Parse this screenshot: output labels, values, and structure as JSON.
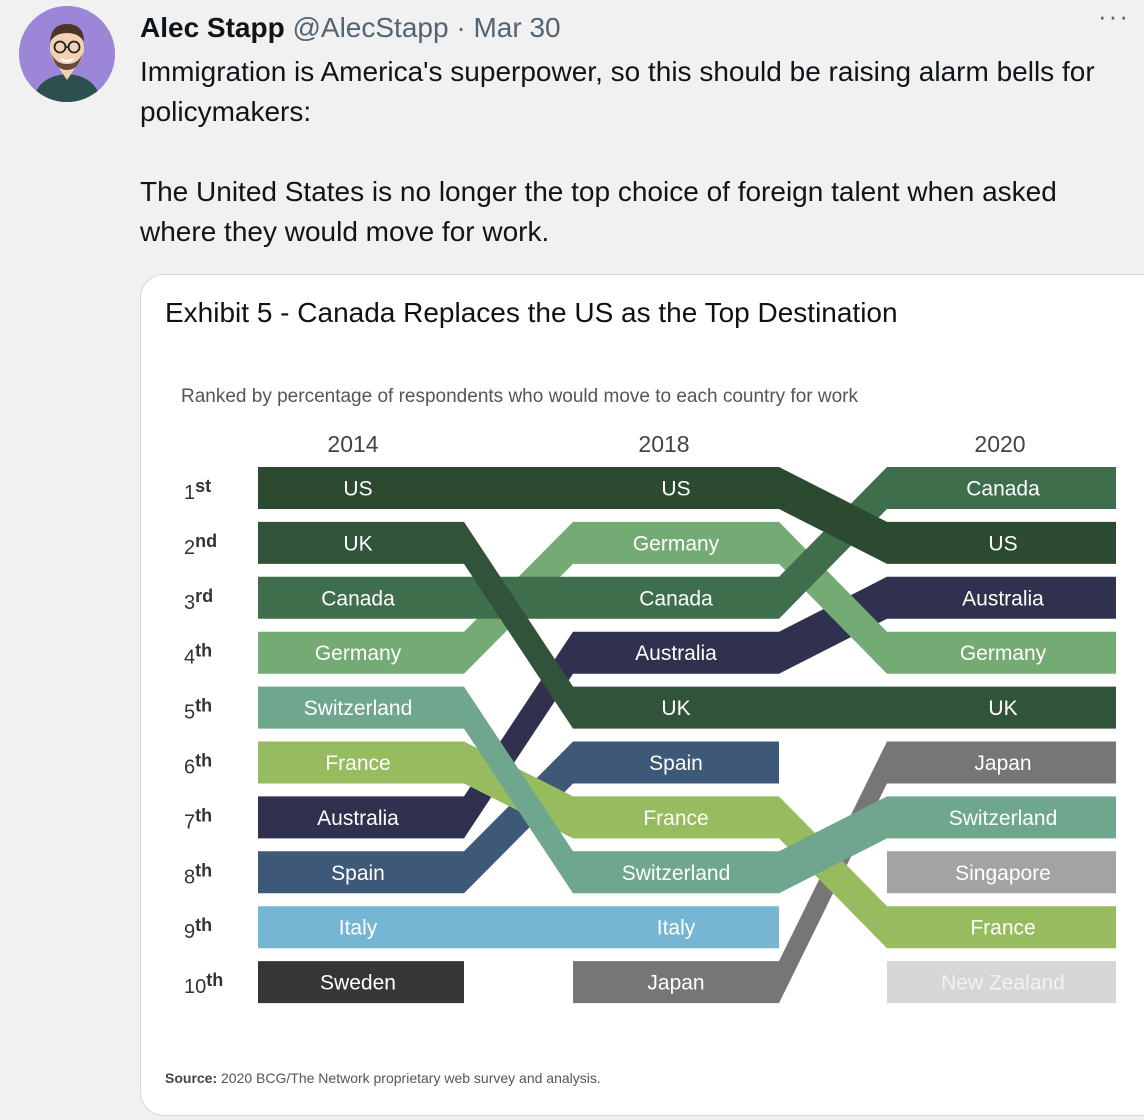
{
  "tweet": {
    "author_name": "Alec Stapp",
    "author_handle": "@AlecStapp",
    "separator": "·",
    "date": "Mar 30",
    "more_label": "···",
    "text_line1": "Immigration is America's superpower, so this should be raising alarm bells for policymakers:",
    "text_line2": "The United States is no longer the top choice of foreign talent when asked where they would move for work."
  },
  "avatar": {
    "icon": "person-avatar-icon",
    "bg_color": "#9b86d8"
  },
  "chart_data": {
    "type": "table",
    "title": "Exhibit 5 - Canada Replaces the US as the Top Destination",
    "subtitle": "Ranked by percentage of respondents who would move to each country for work",
    "source_label": "Source:",
    "source_text": "2020 BCG/The Network proprietary web survey and analysis.",
    "years": [
      "2014",
      "2018",
      "2020"
    ],
    "rank_labels": [
      {
        "num": "1",
        "suffix": "st"
      },
      {
        "num": "2",
        "suffix": "nd"
      },
      {
        "num": "3",
        "suffix": "rd"
      },
      {
        "num": "4",
        "suffix": "th"
      },
      {
        "num": "5",
        "suffix": "th"
      },
      {
        "num": "6",
        "suffix": "th"
      },
      {
        "num": "7",
        "suffix": "th"
      },
      {
        "num": "8",
        "suffix": "th"
      },
      {
        "num": "9",
        "suffix": "th"
      },
      {
        "num": "10",
        "suffix": "th"
      }
    ],
    "countries": [
      {
        "name": "US",
        "color": "#2b4a2f",
        "ranks": [
          1,
          1,
          2
        ]
      },
      {
        "name": "UK",
        "color": "#30533a",
        "ranks": [
          2,
          5,
          5
        ]
      },
      {
        "name": "Canada",
        "color": "#3f6e4d",
        "ranks": [
          3,
          3,
          1
        ]
      },
      {
        "name": "Germany",
        "color": "#74aa73",
        "ranks": [
          4,
          2,
          4
        ]
      },
      {
        "name": "Switzerland",
        "color": "#6ea68e",
        "ranks": [
          5,
          8,
          7
        ]
      },
      {
        "name": "France",
        "color": "#97bb5f",
        "ranks": [
          6,
          7,
          9
        ]
      },
      {
        "name": "Australia",
        "color": "#30304f",
        "ranks": [
          7,
          4,
          3
        ]
      },
      {
        "name": "Spain",
        "color": "#3e5878",
        "ranks": [
          8,
          6,
          null
        ]
      },
      {
        "name": "Italy",
        "color": "#77b6d2",
        "ranks": [
          9,
          9,
          null
        ]
      },
      {
        "name": "Sweden",
        "color": "#363636",
        "ranks": [
          10,
          null,
          null
        ]
      },
      {
        "name": "Japan",
        "color": "#767676",
        "ranks": [
          null,
          10,
          6
        ]
      },
      {
        "name": "Singapore",
        "color": "#a3a3a3",
        "ranks": [
          null,
          null,
          8
        ]
      },
      {
        "name": "New Zealand",
        "color": "#d6d6d6",
        "ranks": [
          null,
          null,
          10
        ]
      }
    ]
  }
}
